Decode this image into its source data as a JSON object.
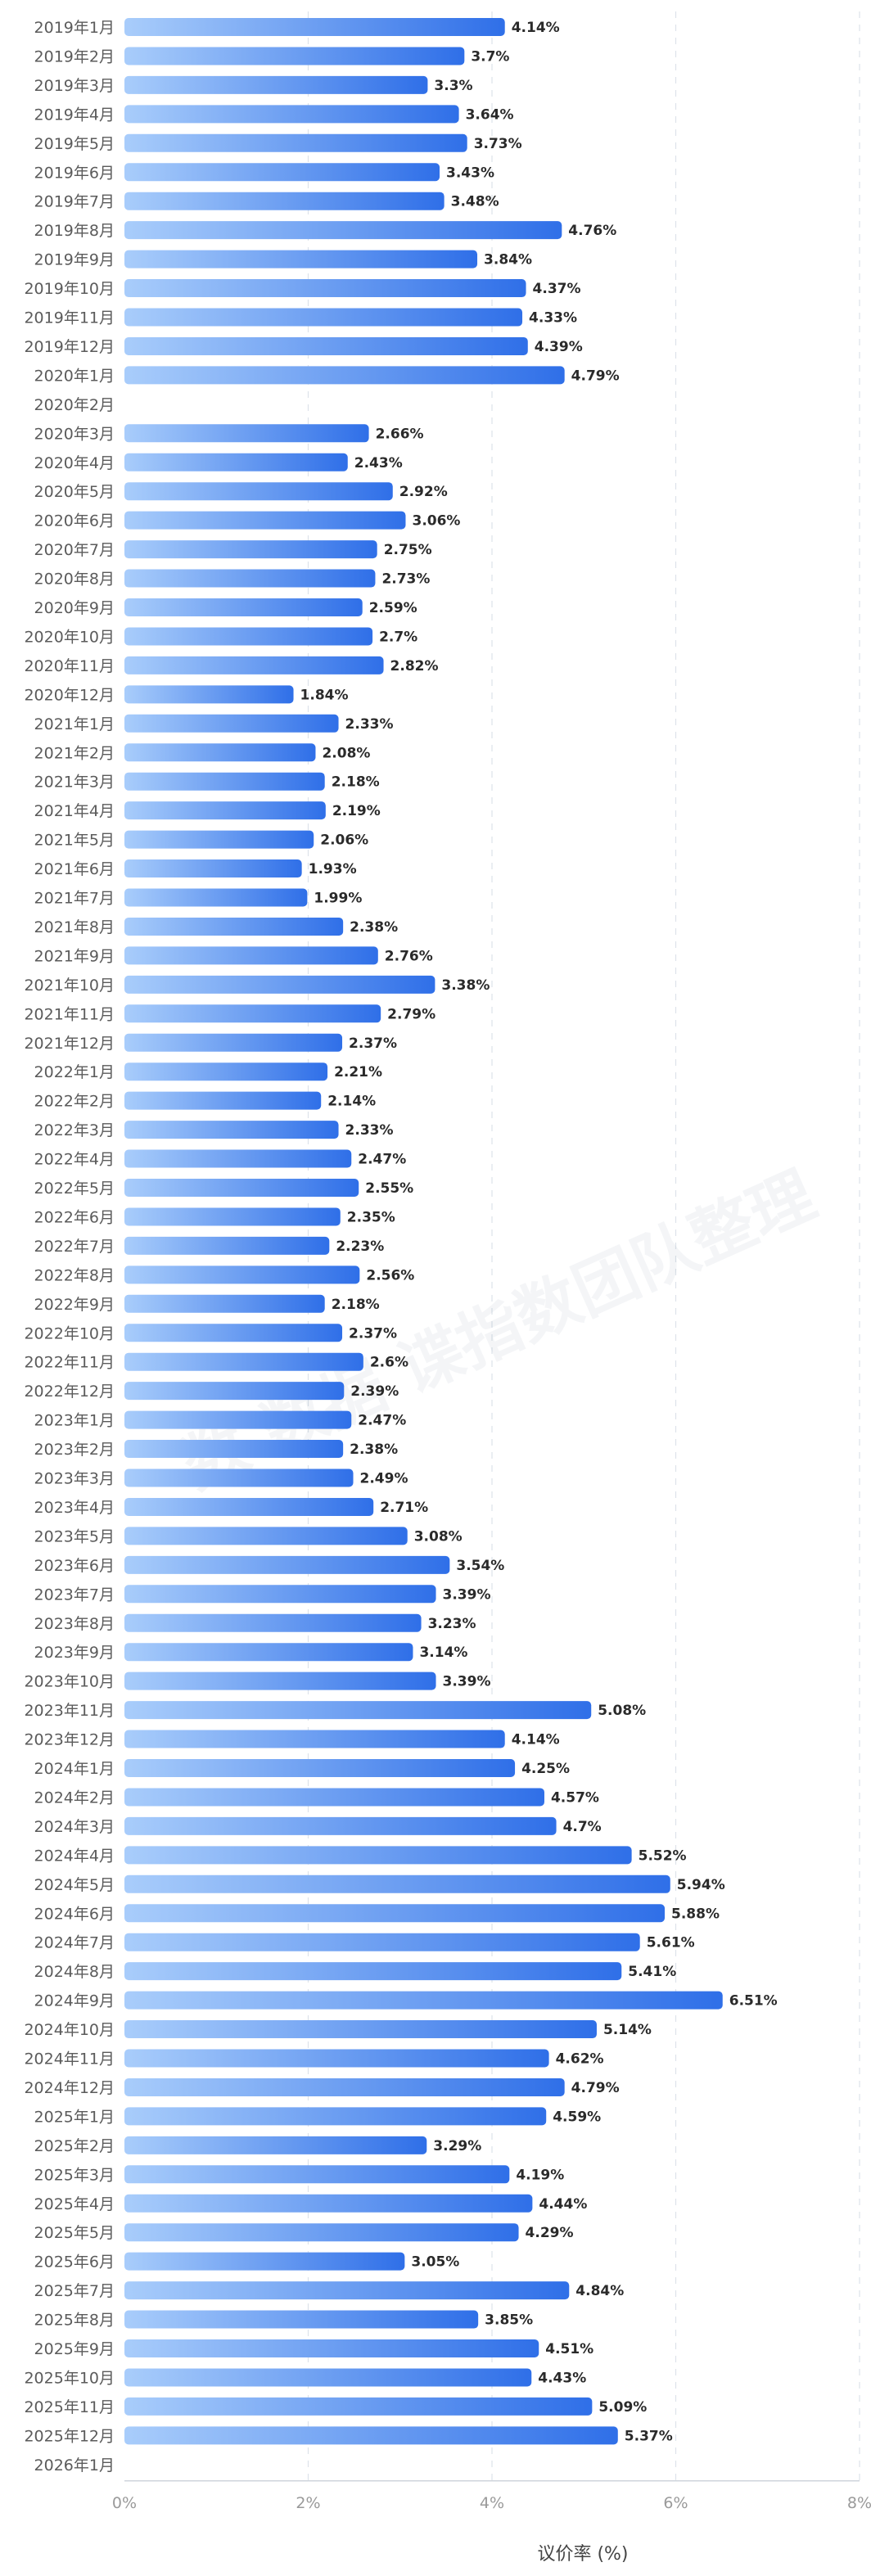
{
  "chart_data": {
    "type": "bar",
    "orientation": "horizontal",
    "categories": [
      "2019年1月",
      "2019年2月",
      "2019年3月",
      "2019年4月",
      "2019年5月",
      "2019年6月",
      "2019年7月",
      "2019年8月",
      "2019年9月",
      "2019年10月",
      "2019年11月",
      "2019年12月",
      "2020年1月",
      "2020年2月",
      "2020年3月",
      "2020年4月",
      "2020年5月",
      "2020年6月",
      "2020年7月",
      "2020年8月",
      "2020年9月",
      "2020年10月",
      "2020年11月",
      "2020年12月",
      "2021年1月",
      "2021年2月",
      "2021年3月",
      "2021年4月",
      "2021年5月",
      "2021年6月",
      "2021年7月",
      "2021年8月",
      "2021年9月",
      "2021年10月",
      "2021年11月",
      "2021年12月",
      "2022年1月",
      "2022年2月",
      "2022年3月",
      "2022年4月",
      "2022年5月",
      "2022年6月",
      "2022年7月",
      "2022年8月",
      "2022年9月",
      "2022年10月",
      "2022年11月",
      "2022年12月",
      "2023年1月",
      "2023年2月",
      "2023年3月",
      "2023年4月",
      "2023年5月",
      "2023年6月",
      "2023年7月",
      "2023年8月",
      "2023年9月",
      "2023年10月",
      "2023年11月",
      "2023年12月",
      "2024年1月",
      "2024年2月",
      "2024年3月",
      "2024年4月",
      "2024年5月",
      "2024年6月",
      "2024年7月",
      "2024年8月",
      "2024年9月",
      "2024年10月",
      "2024年11月",
      "2024年12月",
      "2025年1月",
      "2025年2月",
      "2025年3月",
      "2025年4月",
      "2025年5月",
      "2025年6月",
      "2025年7月",
      "2025年8月",
      "2025年9月",
      "2025年10月",
      "2025年11月",
      "2025年12月",
      "2026年1月"
    ],
    "values": [
      4.14,
      3.7,
      3.3,
      3.64,
      3.73,
      3.43,
      3.48,
      4.76,
      3.84,
      4.37,
      4.33,
      4.39,
      4.79,
      null,
      2.66,
      2.43,
      2.92,
      3.06,
      2.75,
      2.73,
      2.59,
      2.7,
      2.82,
      1.84,
      2.33,
      2.08,
      2.18,
      2.19,
      2.06,
      1.93,
      1.99,
      2.38,
      2.76,
      3.38,
      2.79,
      2.37,
      2.21,
      2.14,
      2.33,
      2.47,
      2.55,
      2.35,
      2.23,
      2.56,
      2.18,
      2.37,
      2.6,
      2.39,
      2.47,
      2.38,
      2.49,
      2.71,
      3.08,
      3.54,
      3.39,
      3.23,
      3.14,
      3.39,
      5.08,
      4.14,
      4.25,
      4.57,
      4.7,
      5.52,
      5.94,
      5.88,
      5.61,
      5.41,
      6.51,
      5.14,
      4.62,
      4.79,
      4.59,
      3.29,
      4.19,
      4.44,
      4.29,
      3.05,
      4.84,
      3.85,
      4.51,
      4.43,
      5.09,
      5.37,
      null
    ],
    "value_labels": [
      "4.14%",
      "3.7%",
      "3.3%",
      "3.64%",
      "3.73%",
      "3.43%",
      "3.48%",
      "4.76%",
      "3.84%",
      "4.37%",
      "4.33%",
      "4.39%",
      "4.79%",
      "",
      "2.66%",
      "2.43%",
      "2.92%",
      "3.06%",
      "2.75%",
      "2.73%",
      "2.59%",
      "2.7%",
      "2.82%",
      "1.84%",
      "2.33%",
      "2.08%",
      "2.18%",
      "2.19%",
      "2.06%",
      "1.93%",
      "1.99%",
      "2.38%",
      "2.76%",
      "3.38%",
      "2.79%",
      "2.37%",
      "2.21%",
      "2.14%",
      "2.33%",
      "2.47%",
      "2.55%",
      "2.35%",
      "2.23%",
      "2.56%",
      "2.18%",
      "2.37%",
      "2.6%",
      "2.39%",
      "2.47%",
      "2.38%",
      "2.49%",
      "2.71%",
      "3.08%",
      "3.54%",
      "3.39%",
      "3.23%",
      "3.14%",
      "3.39%",
      "5.08%",
      "4.14%",
      "4.25%",
      "4.57%",
      "4.7%",
      "5.52%",
      "5.94%",
      "5.88%",
      "5.61%",
      "5.41%",
      "6.51%",
      "5.14%",
      "4.62%",
      "4.79%",
      "4.59%",
      "3.29%",
      "4.19%",
      "4.44%",
      "4.29%",
      "3.05%",
      "4.84%",
      "3.85%",
      "4.51%",
      "4.43%",
      "5.09%",
      "5.37%",
      ""
    ],
    "xlim": [
      0,
      8
    ],
    "xticks": [
      0,
      2,
      4,
      6,
      8
    ],
    "xtick_labels": [
      "0%",
      "2%",
      "4%",
      "6%",
      "8%"
    ],
    "xlabel": "议价率 (%)",
    "grid": "vertical-dashed",
    "colors": {
      "bar_start": "#a9cdfb",
      "bar_end": "#2f6fe8",
      "grid": "#dde3ea"
    }
  },
  "watermark": "数 数据 谍指数团队整理"
}
